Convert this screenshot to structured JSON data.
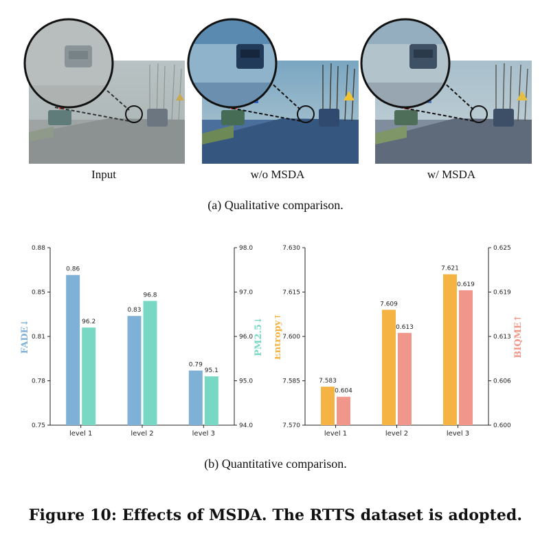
{
  "qualitative": {
    "panels": [
      {
        "label": "Input"
      },
      {
        "label": "w/o MSDA"
      },
      {
        "label": "w/ MSDA"
      }
    ],
    "caption": "(a)  Qualitative comparison."
  },
  "quantitative": {
    "caption": "(b)  Quantitative comparison."
  },
  "figure_caption": "Figure 10: Effects of MSDA. The RTTS dataset is adopted.",
  "colors": {
    "fade": "#7fb0d6",
    "pm25": "#79d8c4",
    "entropy": "#f4b343",
    "biqme": "#f0968a"
  },
  "chart_data": [
    {
      "type": "bar",
      "categories": [
        "level 1",
        "level 2",
        "level 3"
      ],
      "series": [
        {
          "name": "FADE↓",
          "axis": "left",
          "values": [
            0.86,
            0.83,
            0.79
          ],
          "labels": [
            "0.86",
            "0.83",
            "0.79"
          ]
        },
        {
          "name": "PM2.5↓",
          "axis": "right",
          "values": [
            96.2,
            96.8,
            95.1
          ],
          "labels": [
            "96.2",
            "96.8",
            "95.1"
          ]
        }
      ],
      "ylabel_left": "FADE↓",
      "ylabel_right": "PM2.5↓",
      "ylim_left": [
        0.75,
        0.88
      ],
      "ylim_right": [
        94.0,
        98.0
      ],
      "yticks_left": [
        "0.75",
        "0.78",
        "0.81",
        "0.85",
        "0.88"
      ],
      "yticks_right": [
        "94.0",
        "95.0",
        "96.0",
        "97.0",
        "98.0"
      ]
    },
    {
      "type": "bar",
      "categories": [
        "level 1",
        "level 2",
        "level 3"
      ],
      "series": [
        {
          "name": "Entropy↑",
          "axis": "left",
          "values": [
            7.583,
            7.609,
            7.621
          ],
          "labels": [
            "7.583",
            "7.609",
            "7.621"
          ]
        },
        {
          "name": "BIQME↑",
          "axis": "right",
          "values": [
            0.604,
            0.613,
            0.619
          ],
          "labels": [
            "0.604",
            "0.613",
            "0.619"
          ]
        }
      ],
      "ylabel_left": "Entropy↑",
      "ylabel_right": "BIQME↑",
      "ylim_left": [
        7.57,
        7.63
      ],
      "ylim_right": [
        0.6,
        0.625
      ],
      "yticks_left": [
        "7.570",
        "7.585",
        "7.600",
        "7.615",
        "7.630"
      ],
      "yticks_right": [
        "0.600",
        "0.606",
        "0.613",
        "0.619",
        "0.625"
      ]
    }
  ]
}
